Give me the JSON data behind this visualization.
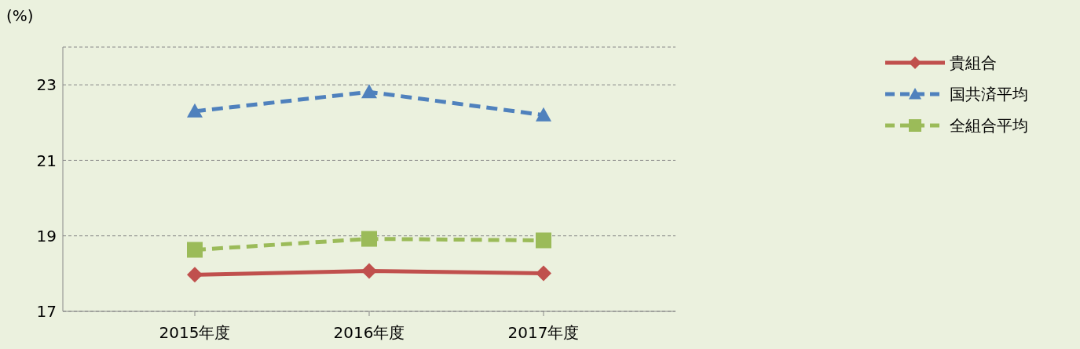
{
  "chart_data": {
    "type": "line",
    "ylabel": "(%)",
    "categories": [
      "2015年度",
      "2016年度",
      "2017年度"
    ],
    "series": [
      {
        "name": "貴組合",
        "color": "#c0504d",
        "values": [
          17.97,
          18.07,
          18.01
        ],
        "marker": "diamond",
        "line_style": "solid"
      },
      {
        "name": "国共済平均",
        "color": "#4f81bd",
        "values": [
          22.3,
          22.81,
          22.2
        ],
        "marker": "triangle",
        "line_style": "dashed"
      },
      {
        "name": "全組合平均",
        "color": "#9bbb59",
        "values": [
          18.63,
          18.92,
          18.88
        ],
        "marker": "square",
        "line_style": "dashed"
      }
    ],
    "ylim": [
      17,
      24
    ],
    "yticks": [
      17,
      19,
      21,
      23
    ],
    "grid": "y",
    "legend": "right"
  }
}
